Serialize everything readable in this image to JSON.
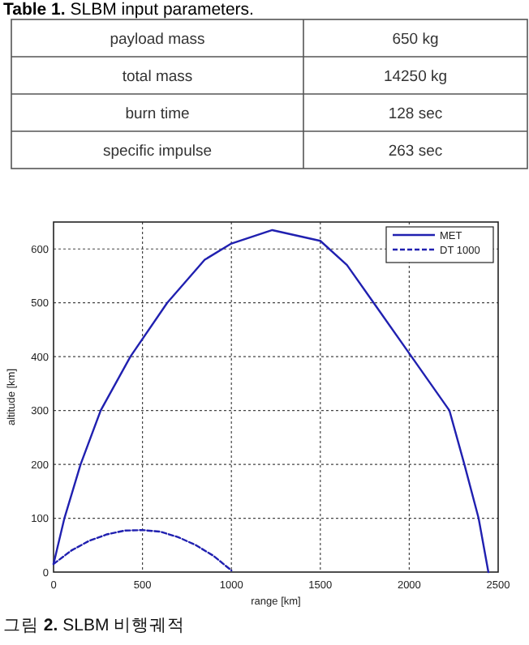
{
  "chart_data": [
    {
      "type": "other",
      "title": "**Table 1.** SLBM input parameters.",
      "annotations": [
        "payload mass",
        "650 kg",
        "total mass",
        "14250 kg",
        "burn time",
        "128 sec",
        "specific impulse",
        "263 sec"
      ]
    },
    {
      "type": "line",
      "xlabel": "range [km]",
      "ylabel": "altitude [km]",
      "xlim": [
        0,
        2500
      ],
      "ylim": [
        0,
        650
      ],
      "xticks": [
        0,
        500,
        1000,
        1500,
        2000,
        2500
      ],
      "yticks": [
        0,
        100,
        200,
        300,
        400,
        500,
        600
      ],
      "grid": true,
      "legend": "top right",
      "annotations": [
        "그림 **2.** SLBM 비행궤적"
      ],
      "series": [
        {
          "name": "MET",
          "color": "#2020b0",
          "line_style": "solid",
          "x": [
            0,
            61,
            152,
            265,
            432,
            639,
            850,
            1000,
            1230,
            1500,
            1650,
            1800,
            2013,
            2226,
            2310,
            2390,
            2445
          ],
          "values": [
            15,
            100,
            200,
            300,
            400,
            500,
            580,
            610,
            635,
            615,
            570,
            500,
            400,
            300,
            200,
            100,
            0
          ]
        },
        {
          "name": "DT 1000",
          "color": "#2020b0",
          "line_style": "dashed",
          "x": [
            0,
            100,
            200,
            300,
            400,
            500,
            600,
            700,
            800,
            900,
            1000
          ],
          "values": [
            15,
            40,
            58,
            70,
            77,
            78,
            75,
            65,
            50,
            30,
            3
          ]
        }
      ]
    }
  ]
}
